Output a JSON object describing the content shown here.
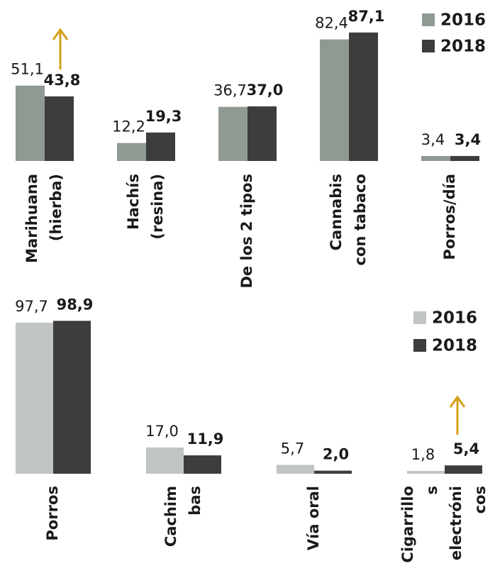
{
  "chart_data": [
    {
      "type": "bar",
      "categories": [
        "Marihuana\n(hierba)",
        "Hachís\n(resina)",
        "De los 2 tipos",
        "Cannabis\ncon tabaco",
        "Porros/día"
      ],
      "series": [
        {
          "name": "2016",
          "color": "#8f9a92",
          "values": [
            51.1,
            12.2,
            36.7,
            82.4,
            3.4
          ],
          "value_labels": [
            "51,1",
            "12,2",
            "36,7",
            "82,4",
            "3,4"
          ]
        },
        {
          "name": "2018",
          "color": "#3d3d3d",
          "values": [
            43.8,
            19.3,
            37.0,
            87.1,
            3.4
          ],
          "value_labels": [
            "43,8",
            "19,3",
            "37,0",
            "87,1",
            "3,4"
          ]
        }
      ]
    },
    {
      "type": "bar",
      "categories": [
        "Porros",
        "Cachim\nbas",
        "Vía oral",
        "Cigarrillo\ns\nelectróni\ncos"
      ],
      "series": [
        {
          "name": "2016",
          "color": "#c0c5c1",
          "values": [
            97.7,
            17.0,
            5.7,
            1.8
          ],
          "value_labels": [
            "97,7",
            "17,0",
            "5,7",
            "1,8"
          ]
        },
        {
          "name": "2018",
          "color": "#3d3d3d",
          "values": [
            98.9,
            11.9,
            2.0,
            5.4
          ],
          "value_labels": [
            "98,9",
            "11,9",
            "2,0",
            "5,4"
          ]
        }
      ]
    }
  ]
}
